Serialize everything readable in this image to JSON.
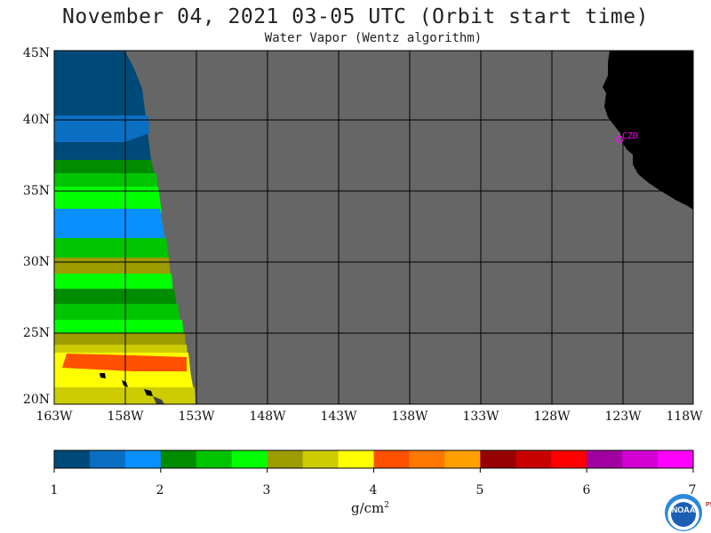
{
  "title": "November 04, 2021  03-05 UTC  (Orbit start time)",
  "subtitle": "Water Vapor (Wentz algorithm)",
  "map": {
    "lat_labels": [
      "45N",
      "40N",
      "35N",
      "30N",
      "25N",
      "20N"
    ],
    "lon_labels": [
      "163W",
      "158W",
      "153W",
      "148W",
      "143W",
      "138W",
      "133W",
      "128W",
      "123W",
      "118W"
    ],
    "station": "CZD",
    "colors": {
      "nodata": "#666666",
      "land": "#000000",
      "grid": "#000000",
      "station": "#ff00ff"
    }
  },
  "colorbar": {
    "ticks": [
      "1",
      "2",
      "3",
      "4",
      "5",
      "6",
      "7"
    ],
    "units": "g/cm",
    "units_exp": "2",
    "colors": [
      "#004a7a",
      "#0a6fc2",
      "#0a8fff",
      "#008c00",
      "#00c400",
      "#00ff00",
      "#9c9c00",
      "#cccc00",
      "#ffff00",
      "#ff5000",
      "#ff7800",
      "#ffa000",
      "#960000",
      "#c80000",
      "#ff0000",
      "#a000a0",
      "#d200d2",
      "#ff00ff"
    ]
  },
  "logo": {
    "text": "NOAA",
    "side_text": "PSL"
  }
}
